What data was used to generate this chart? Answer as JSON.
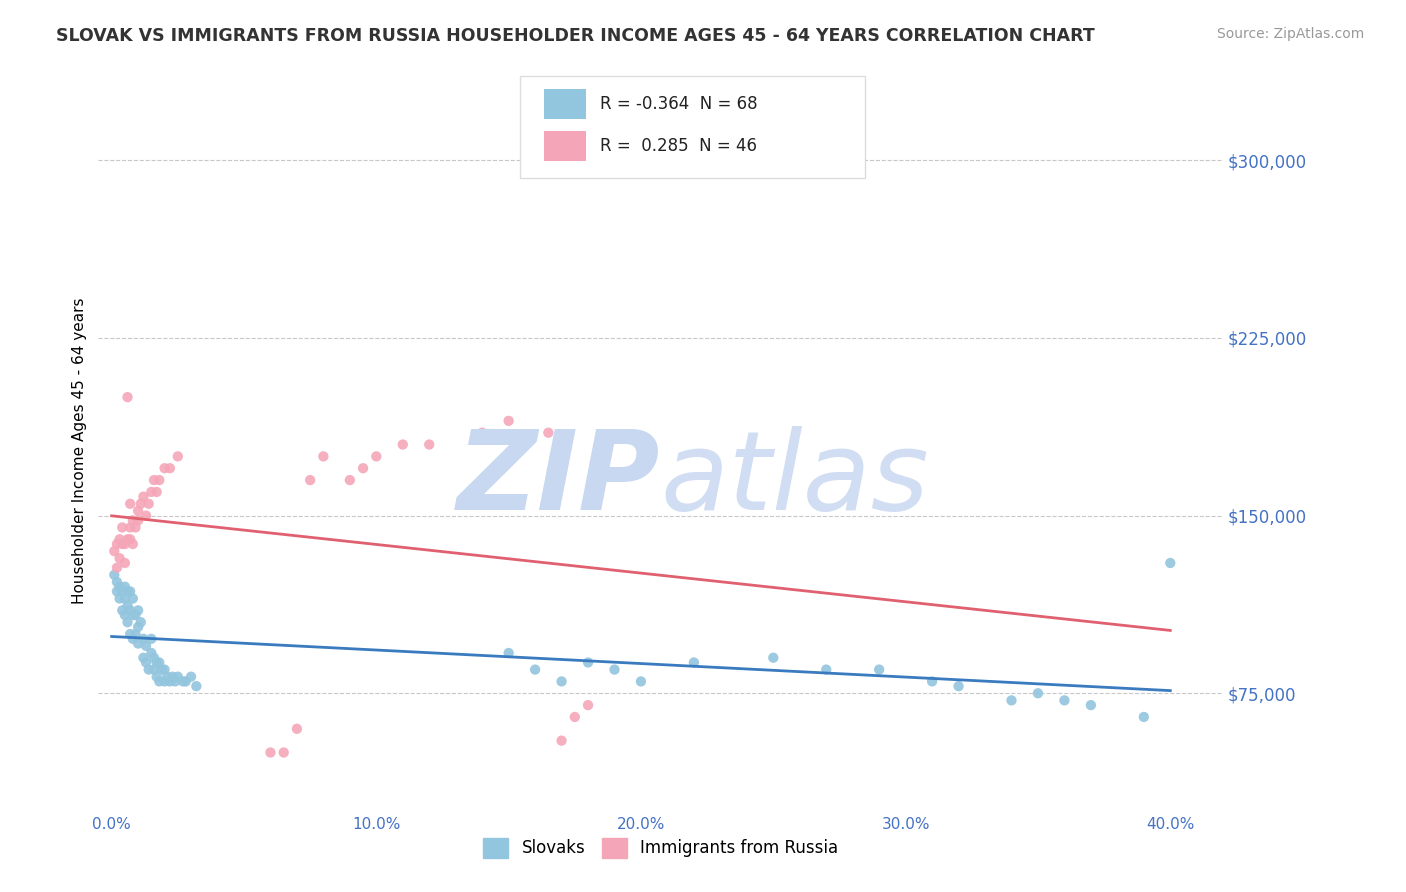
{
  "title": "SLOVAK VS IMMIGRANTS FROM RUSSIA HOUSEHOLDER INCOME AGES 45 - 64 YEARS CORRELATION CHART",
  "source": "Source: ZipAtlas.com",
  "ylabel": "Householder Income Ages 45 - 64 years",
  "xlim": [
    -0.005,
    0.42
  ],
  "ylim": [
    25000,
    330000
  ],
  "yticks": [
    75000,
    150000,
    225000,
    300000
  ],
  "ytick_labels": [
    "$75,000",
    "$150,000",
    "$225,000",
    "$300,000"
  ],
  "xticks": [
    0.0,
    0.05,
    0.1,
    0.15,
    0.2,
    0.25,
    0.3,
    0.35,
    0.4
  ],
  "xtick_labels": [
    "0.0%",
    "",
    "10.0%",
    "",
    "20.0%",
    "",
    "30.0%",
    "",
    "40.0%"
  ],
  "blue_R": -0.364,
  "blue_N": 68,
  "pink_R": 0.285,
  "pink_N": 46,
  "blue_color": "#92c5de",
  "pink_color": "#f4a6b8",
  "blue_line_color": "#3a7bbf",
  "pink_line_color": "#e06070",
  "axis_color": "#4472c4",
  "grid_color": "#c8c8c8",
  "background_color": "#ffffff",
  "watermark_color": "#c8d8f0",
  "blue_scatter_x": [
    0.001,
    0.002,
    0.002,
    0.003,
    0.003,
    0.004,
    0.004,
    0.005,
    0.005,
    0.005,
    0.006,
    0.006,
    0.006,
    0.007,
    0.007,
    0.007,
    0.008,
    0.008,
    0.008,
    0.009,
    0.009,
    0.01,
    0.01,
    0.01,
    0.011,
    0.012,
    0.012,
    0.013,
    0.013,
    0.014,
    0.015,
    0.015,
    0.016,
    0.016,
    0.017,
    0.017,
    0.018,
    0.018,
    0.019,
    0.02,
    0.02,
    0.021,
    0.022,
    0.023,
    0.024,
    0.025,
    0.027,
    0.028,
    0.03,
    0.032,
    0.15,
    0.16,
    0.17,
    0.18,
    0.19,
    0.2,
    0.22,
    0.25,
    0.27,
    0.29,
    0.31,
    0.32,
    0.34,
    0.35,
    0.36,
    0.37,
    0.39,
    0.4
  ],
  "blue_scatter_y": [
    125000,
    122000,
    118000,
    115000,
    120000,
    110000,
    118000,
    108000,
    115000,
    120000,
    105000,
    112000,
    118000,
    100000,
    110000,
    118000,
    98000,
    108000,
    115000,
    100000,
    108000,
    96000,
    103000,
    110000,
    105000,
    90000,
    98000,
    88000,
    95000,
    85000,
    92000,
    98000,
    85000,
    90000,
    82000,
    88000,
    80000,
    88000,
    85000,
    80000,
    85000,
    82000,
    80000,
    82000,
    80000,
    82000,
    80000,
    80000,
    82000,
    78000,
    92000,
    85000,
    80000,
    88000,
    85000,
    80000,
    88000,
    90000,
    85000,
    85000,
    80000,
    78000,
    72000,
    75000,
    72000,
    70000,
    65000,
    130000
  ],
  "pink_scatter_x": [
    0.001,
    0.002,
    0.002,
    0.003,
    0.003,
    0.004,
    0.004,
    0.005,
    0.005,
    0.006,
    0.006,
    0.007,
    0.007,
    0.007,
    0.008,
    0.008,
    0.009,
    0.01,
    0.01,
    0.011,
    0.012,
    0.013,
    0.014,
    0.015,
    0.016,
    0.017,
    0.018,
    0.02,
    0.022,
    0.025,
    0.06,
    0.065,
    0.07,
    0.075,
    0.08,
    0.09,
    0.095,
    0.1,
    0.11,
    0.12,
    0.14,
    0.15,
    0.165,
    0.17,
    0.175,
    0.18
  ],
  "pink_scatter_y": [
    135000,
    128000,
    138000,
    140000,
    132000,
    145000,
    138000,
    130000,
    138000,
    140000,
    200000,
    145000,
    140000,
    155000,
    138000,
    148000,
    145000,
    148000,
    152000,
    155000,
    158000,
    150000,
    155000,
    160000,
    165000,
    160000,
    165000,
    170000,
    170000,
    175000,
    50000,
    50000,
    60000,
    165000,
    175000,
    165000,
    170000,
    175000,
    180000,
    180000,
    185000,
    190000,
    185000,
    55000,
    65000,
    70000
  ]
}
